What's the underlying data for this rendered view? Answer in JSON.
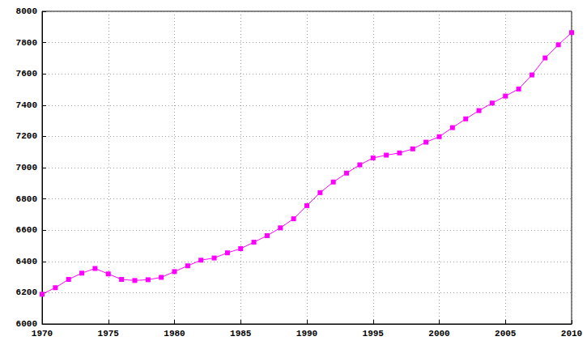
{
  "chart_data": {
    "type": "line",
    "x": [
      1970,
      1971,
      1972,
      1973,
      1974,
      1975,
      1976,
      1977,
      1978,
      1979,
      1980,
      1981,
      1982,
      1983,
      1984,
      1985,
      1986,
      1987,
      1988,
      1989,
      1990,
      1991,
      1992,
      1993,
      1994,
      1995,
      1996,
      1997,
      1998,
      1999,
      2000,
      2001,
      2002,
      2003,
      2004,
      2005,
      2006,
      2007,
      2008,
      2009,
      2010
    ],
    "values": [
      6190,
      6232,
      6285,
      6325,
      6355,
      6320,
      6285,
      6278,
      6283,
      6298,
      6335,
      6372,
      6408,
      6422,
      6455,
      6482,
      6523,
      6565,
      6615,
      6673,
      6757,
      6840,
      6908,
      6965,
      7018,
      7062,
      7080,
      7094,
      7120,
      7163,
      7198,
      7256,
      7312,
      7365,
      7413,
      7458,
      7503,
      7593,
      7702,
      7786,
      7864
    ],
    "color": "#ff00ff",
    "marker": "square",
    "line_style": "solid",
    "xlim": [
      1970,
      2010
    ],
    "xticks": [
      1970,
      1975,
      1980,
      1985,
      1990,
      1995,
      2000,
      2005,
      2010
    ],
    "ylim": [
      6000,
      8000
    ],
    "yticks": [
      6000,
      6200,
      6400,
      6600,
      6800,
      7000,
      7200,
      7400,
      7600,
      7800,
      8000
    ],
    "grid": true
  }
}
